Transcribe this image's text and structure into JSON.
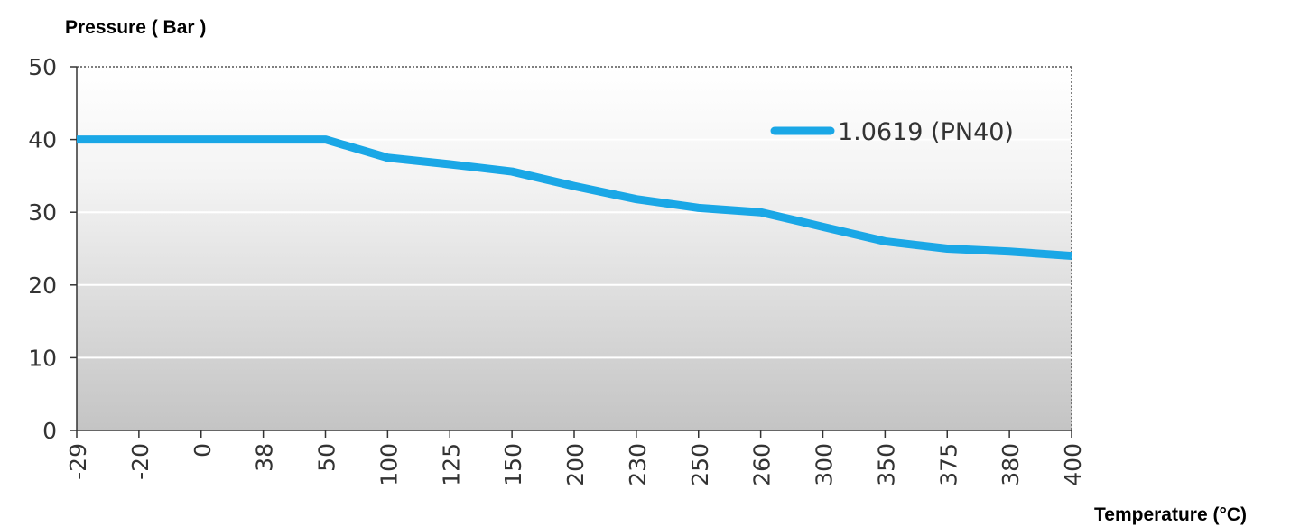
{
  "chart_data": {
    "type": "line",
    "ylabel": "Pressure ( Bar )",
    "xlabel": "Temperature (°C)",
    "categories": [
      "-29",
      "-20",
      "0",
      "38",
      "50",
      "100",
      "125",
      "150",
      "200",
      "230",
      "250",
      "260",
      "300",
      "350",
      "375",
      "380",
      "400"
    ],
    "series": [
      {
        "name": "1.0619 (PN40)",
        "color": "#1aa7e6",
        "values": [
          40,
          40,
          40,
          40,
          40,
          37.5,
          36.6,
          35.6,
          33.6,
          31.8,
          30.6,
          30.0,
          28.0,
          26.0,
          25.0,
          24.6,
          24.0
        ]
      }
    ],
    "ylim": [
      0,
      50
    ],
    "yticks": [
      "0",
      "10",
      "20",
      "30",
      "40",
      "50"
    ],
    "grid": "horizontal",
    "legend_position": "top-right",
    "plot_background": "vertical gradient white to gray"
  }
}
